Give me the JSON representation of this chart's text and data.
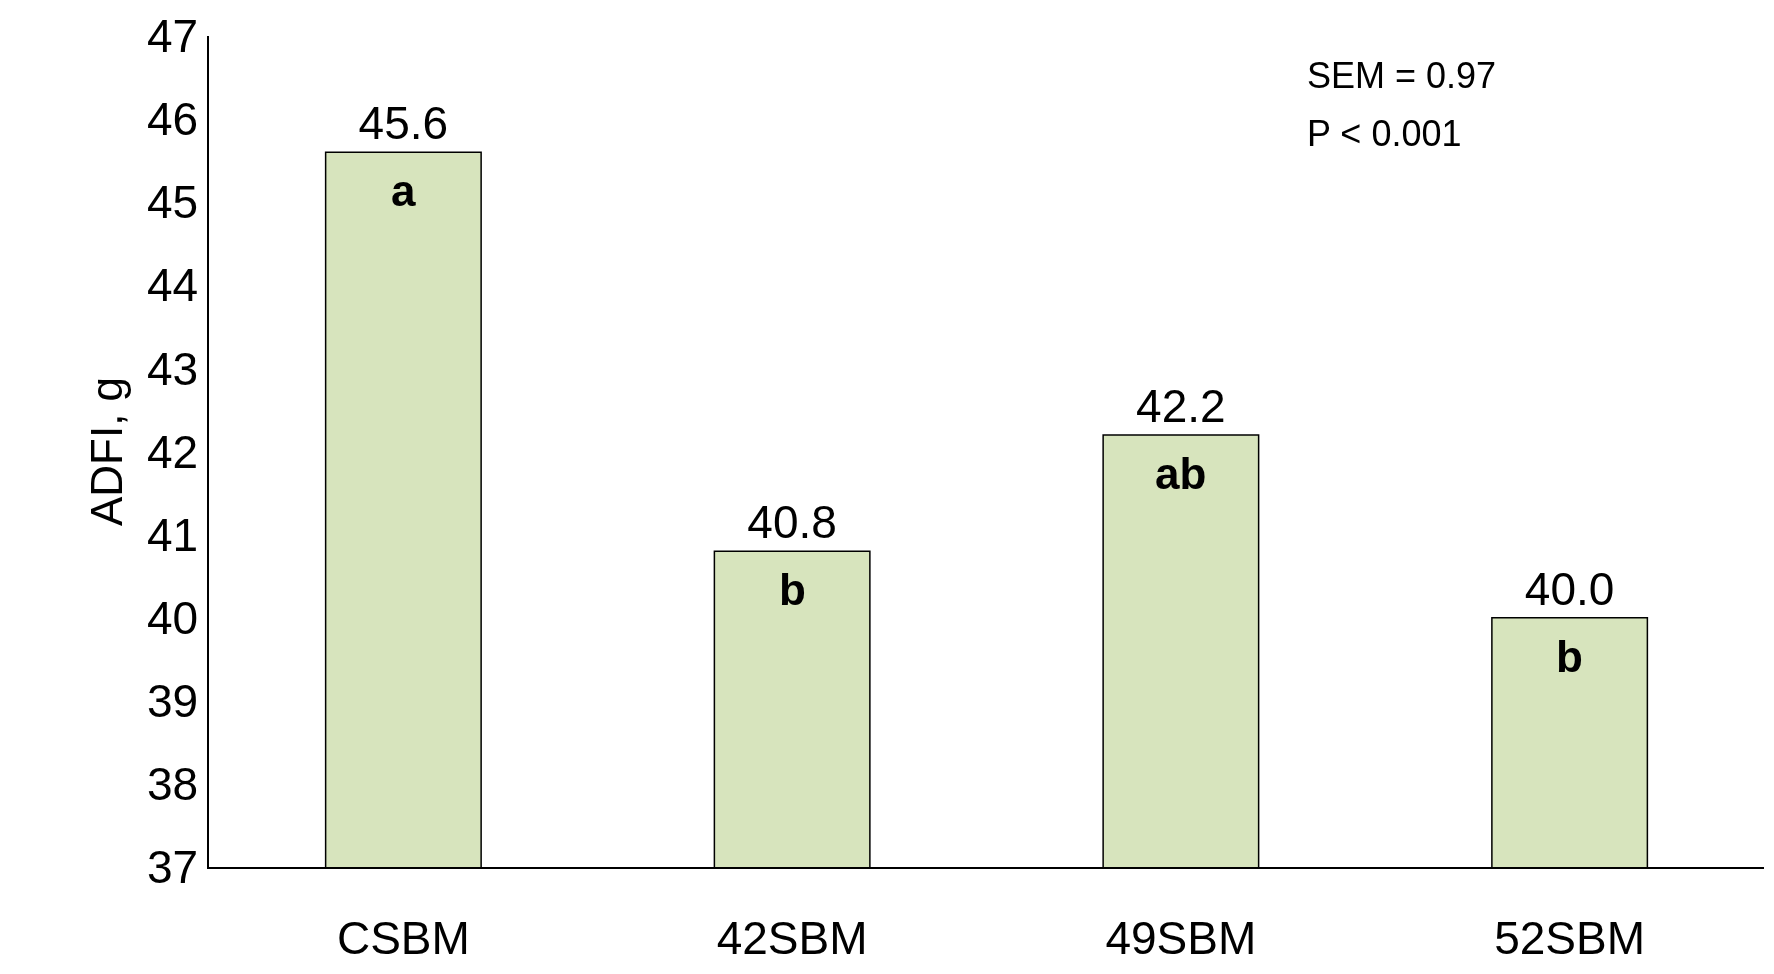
{
  "chart_data": {
    "type": "bar",
    "ylabel": "ADFI, g",
    "categories": [
      "CSBM",
      "42SBM",
      "49SBM",
      "52SBM"
    ],
    "values": [
      45.6,
      40.8,
      42.2,
      40.0
    ],
    "color": "#d7e4bd",
    "data_labels": true,
    "value_labels": [
      "45.6",
      "40.8",
      "42.2",
      "40.0"
    ],
    "ylim": [
      37,
      47
    ],
    "yticks": [
      37,
      38,
      39,
      40,
      41,
      42,
      43,
      44,
      45,
      46,
      47
    ],
    "annotations": [
      {
        "text": "a",
        "x": "CSBM",
        "y": 45.6
      },
      {
        "text": "b",
        "x": "42SBM",
        "y": 40.8
      },
      {
        "text": "ab",
        "x": "49SBM",
        "y": 42.2
      },
      {
        "text": "b",
        "x": "52SBM",
        "y": 40.0
      },
      "SEM = 0.97",
      "P < 0.001"
    ]
  }
}
